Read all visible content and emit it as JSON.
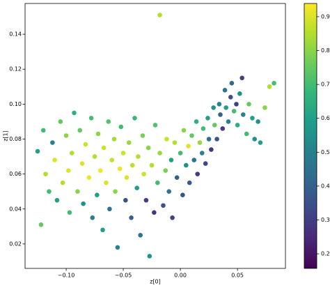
{
  "chart_data": {
    "type": "scatter",
    "x_label": "z[0]",
    "y_label": "z[1]",
    "xlim": [
      -0.136,
      0.092
    ],
    "xticks": [
      {
        "value": -0.1,
        "label": "−0.10"
      },
      {
        "value": -0.05,
        "label": "−0.05"
      },
      {
        "value": 0,
        "label": "0.00"
      },
      0.05
    ],
    "ylim": [
      0.006,
      0.1576
    ],
    "yticks": [
      0.02,
      0.04,
      0.06,
      0.08,
      {
        "value": 0.1,
        "label": "0.10"
      },
      0.12,
      0.14
    ],
    "colormap": "viridis",
    "colorbar": {
      "lim": [
        0.157,
        0.939
      ],
      "ticks": [
        0.2,
        0.3,
        0.4,
        0.5,
        0.6,
        0.7,
        0.8,
        0.9
      ]
    },
    "x": [
      -0.125,
      -0.122,
      -0.12,
      -0.118,
      -0.115,
      -0.112,
      -0.11,
      -0.108,
      -0.105,
      -0.103,
      -0.1,
      -0.098,
      -0.097,
      -0.095,
      -0.093,
      -0.09,
      -0.088,
      -0.086,
      -0.085,
      -0.083,
      -0.08,
      -0.078,
      -0.077,
      -0.075,
      -0.073,
      -0.072,
      -0.07,
      -0.068,
      -0.067,
      -0.065,
      -0.063,
      -0.062,
      -0.06,
      -0.058,
      -0.057,
      -0.055,
      -0.053,
      -0.052,
      -0.05,
      -0.048,
      -0.047,
      -0.045,
      -0.043,
      -0.042,
      -0.04,
      -0.038,
      -0.037,
      -0.035,
      -0.033,
      -0.032,
      -0.03,
      -0.028,
      -0.027,
      -0.025,
      -0.023,
      -0.022,
      -0.02,
      -0.018,
      -0.018,
      -0.015,
      -0.013,
      -0.012,
      -0.01,
      -0.008,
      -0.007,
      -0.005,
      -0.003,
      0.0,
      0.002,
      0.003,
      0.005,
      0.007,
      0.008,
      0.01,
      0.012,
      0.014,
      0.015,
      0.017,
      0.019,
      0.02,
      0.022,
      0.024,
      0.025,
      0.027,
      0.029,
      0.03,
      0.032,
      0.034,
      0.035,
      0.037,
      0.039,
      0.04,
      0.042,
      0.044,
      0.045,
      0.047,
      0.049,
      0.05,
      0.052,
      0.054,
      0.055,
      0.058,
      0.06,
      0.063,
      0.065,
      0.068,
      0.07,
      0.074,
      0.078,
      0.082
    ],
    "y": [
      0.073,
      0.031,
      0.085,
      0.06,
      0.05,
      0.078,
      0.068,
      0.045,
      0.09,
      0.055,
      0.082,
      0.062,
      0.038,
      0.072,
      0.095,
      0.05,
      0.085,
      0.066,
      0.043,
      0.077,
      0.058,
      0.092,
      0.035,
      0.07,
      0.048,
      0.083,
      0.062,
      0.028,
      0.075,
      0.055,
      0.09,
      0.04,
      0.068,
      0.08,
      0.05,
      0.018,
      0.063,
      0.087,
      0.072,
      0.045,
      0.058,
      0.078,
      0.035,
      0.065,
      0.092,
      0.052,
      0.07,
      0.025,
      0.082,
      0.06,
      0.045,
      0.075,
      0.013,
      0.065,
      0.038,
      0.088,
      0.055,
      0.151,
      0.072,
      0.042,
      0.062,
      0.08,
      0.05,
      0.068,
      0.035,
      0.078,
      0.058,
      0.072,
      0.048,
      0.085,
      0.065,
      0.076,
      0.055,
      0.082,
      0.068,
      0.09,
      0.06,
      0.078,
      0.072,
      0.086,
      0.066,
      0.092,
      0.08,
      0.074,
      0.098,
      0.088,
      0.08,
      0.1,
      0.094,
      0.086,
      0.108,
      0.098,
      0.09,
      0.104,
      0.112,
      0.096,
      0.1,
      0.088,
      0.106,
      0.115,
      0.094,
      0.083,
      0.1,
      0.092,
      0.08,
      0.09,
      0.078,
      0.098,
      0.11,
      0.112
    ],
    "c": [
      0.6,
      0.75,
      0.7,
      0.85,
      0.7,
      0.5,
      0.9,
      0.6,
      0.75,
      0.85,
      0.8,
      0.9,
      0.7,
      0.85,
      0.65,
      0.8,
      0.75,
      0.9,
      0.55,
      0.88,
      0.92,
      0.7,
      0.5,
      0.85,
      0.6,
      0.8,
      0.93,
      0.6,
      0.88,
      0.9,
      0.72,
      0.45,
      0.87,
      0.83,
      0.8,
      0.5,
      0.92,
      0.7,
      0.88,
      0.35,
      0.9,
      0.82,
      0.4,
      0.86,
      0.68,
      0.6,
      0.85,
      0.45,
      0.78,
      0.88,
      0.3,
      0.8,
      0.55,
      0.85,
      0.28,
      0.72,
      0.7,
      0.85,
      0.82,
      0.35,
      0.78,
      0.88,
      0.45,
      0.6,
      0.3,
      0.85,
      0.4,
      0.7,
      0.35,
      0.8,
      0.55,
      0.9,
      0.38,
      0.75,
      0.45,
      0.65,
      0.3,
      0.82,
      0.5,
      0.7,
      0.32,
      0.6,
      0.45,
      0.28,
      0.55,
      0.75,
      0.35,
      0.5,
      0.4,
      0.3,
      0.45,
      0.6,
      0.5,
      0.35,
      0.42,
      0.7,
      0.3,
      0.65,
      0.55,
      0.3,
      0.5,
      0.7,
      0.75,
      0.6,
      0.55,
      0.55,
      0.6,
      0.8,
      0.85,
      0.7
    ]
  }
}
